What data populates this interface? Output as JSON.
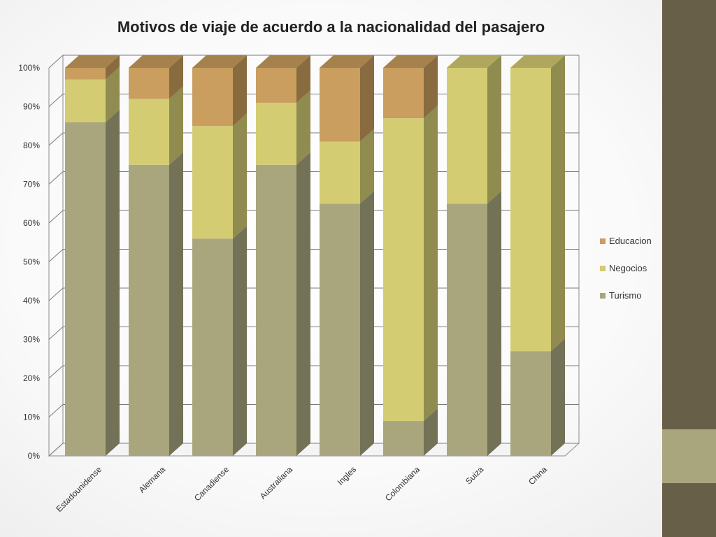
{
  "colors": {
    "sidebar_dark": "#675f48",
    "sidebar_light": "#a9a67e",
    "Turismo": "#a9a67e",
    "Negocios": "#d4cc72",
    "Educacion": "#c99e5e"
  },
  "chart_data": {
    "type": "bar",
    "stacked": true,
    "three_d": true,
    "title": "Motivos de viaje de acuerdo a la nacionalidad del pasajero",
    "categories": [
      "Estadounidense",
      "Alemana",
      "Canadiense",
      "Australiana",
      "Ingles",
      "Colombiana",
      "Suiza",
      "China"
    ],
    "y_ticks": [
      "0%",
      "10%",
      "20%",
      "30%",
      "40%",
      "50%",
      "60%",
      "70%",
      "80%",
      "90%",
      "100%"
    ],
    "ylim": [
      0,
      100
    ],
    "grid": true,
    "legend_position": "right",
    "legend": [
      "Educacion",
      "Negocios",
      "Turismo"
    ],
    "series": [
      {
        "name": "Turismo",
        "values": [
          86,
          75,
          56,
          75,
          65,
          9,
          65,
          27
        ]
      },
      {
        "name": "Negocios",
        "values": [
          11,
          17,
          29,
          16,
          16,
          78,
          35,
          73
        ]
      },
      {
        "name": "Educacion",
        "values": [
          3,
          8,
          15,
          9,
          19,
          13,
          0,
          0
        ]
      }
    ]
  }
}
